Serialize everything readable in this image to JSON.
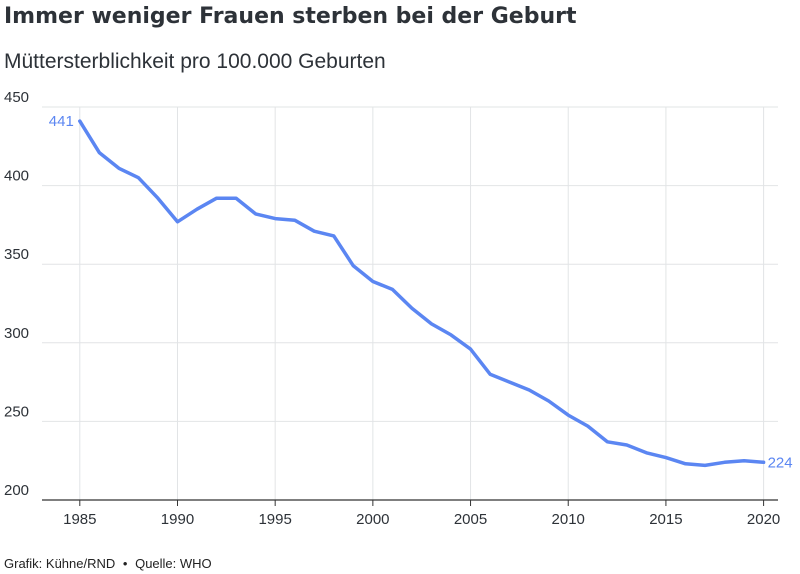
{
  "title": "Immer weniger Frauen sterben bei der Geburt",
  "subtitle": "Müttersterblichkeit pro 100.000 Geburten",
  "footer": {
    "credit": "Grafik: Kühne/RND",
    "separator": "•",
    "source": "Quelle: WHO"
  },
  "colors": {
    "line": "#5b86f2",
    "grid": "#e2e4e6",
    "text": "#2d3238"
  },
  "chart_data": {
    "type": "line",
    "title": "Immer weniger Frauen sterben bei der Geburt",
    "subtitle": "Müttersterblichkeit pro 100.000 Geburten",
    "xlabel": "",
    "ylabel": "",
    "xlim": [
      1983,
      2021
    ],
    "ylim": [
      200,
      450
    ],
    "x_ticks": [
      1985,
      1990,
      1995,
      2000,
      2005,
      2010,
      2015,
      2020
    ],
    "y_ticks": [
      200,
      250,
      300,
      350,
      400,
      450
    ],
    "grid": "vertical and horizontal",
    "series": [
      {
        "x": [
          1985,
          1986,
          1987,
          1988,
          1989,
          1990,
          1991,
          1992,
          1993,
          1994,
          1995,
          1996,
          1997,
          1998,
          1999,
          2000,
          2001,
          2002,
          2003,
          2004,
          2005,
          2006,
          2007,
          2008,
          2009,
          2010,
          2011,
          2012,
          2013,
          2014,
          2015,
          2016,
          2017,
          2018,
          2019,
          2020
        ],
        "values": [
          441,
          421,
          411,
          405,
          392,
          377,
          385,
          392,
          392,
          382,
          379,
          378,
          371,
          368,
          349,
          339,
          334,
          322,
          312,
          305,
          296,
          280,
          275,
          270,
          263,
          254,
          247,
          237,
          235,
          230,
          227,
          223,
          222,
          224,
          225,
          224
        ],
        "start_label": "441",
        "end_label": "224"
      }
    ]
  }
}
